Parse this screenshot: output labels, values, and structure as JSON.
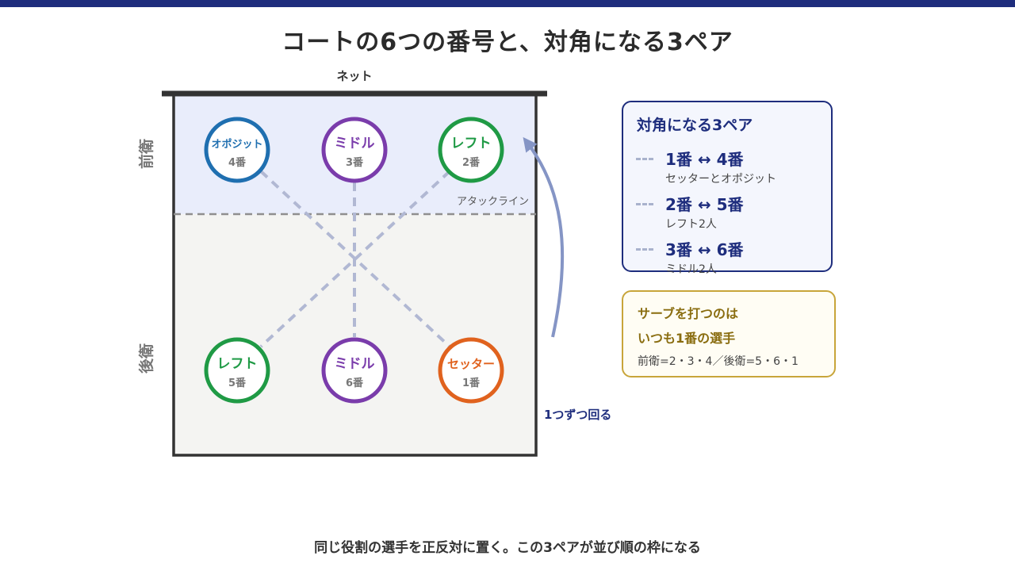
{
  "title": "コートの6つの番号と、対角になる3ペア",
  "court": {
    "net_label": "ネット",
    "front_label": "前衛",
    "back_label": "後衛",
    "attack_line_label": "アタックライン",
    "rotation_label": "1つずつ回る",
    "colors": {
      "front_zone": "#e9edfb",
      "back_zone": "#f4f4f2",
      "diagonal": "#b1b8d3",
      "rotation_arrow": "#8595c5"
    }
  },
  "players": [
    {
      "id": "p4",
      "role": "オポジット",
      "number": "4番",
      "color": "#1f6fb0"
    },
    {
      "id": "p3",
      "role": "ミドル",
      "number": "3番",
      "color": "#7a3cab"
    },
    {
      "id": "p2",
      "role": "レフト",
      "number": "2番",
      "color": "#1f9a45"
    },
    {
      "id": "p5",
      "role": "レフト",
      "number": "5番",
      "color": "#1f9a45"
    },
    {
      "id": "p6",
      "role": "ミドル",
      "number": "6番",
      "color": "#7a3cab"
    },
    {
      "id": "p1",
      "role": "セッター",
      "number": "1番",
      "color": "#e0621e"
    }
  ],
  "pairs_panel": {
    "title": "対角になる3ペア",
    "pairs": [
      {
        "label": "1番 ↔ 4番",
        "desc": "セッターとオポジット"
      },
      {
        "label": "2番 ↔ 5番",
        "desc": "レフト2人"
      },
      {
        "label": "3番 ↔ 6番",
        "desc": "ミドル2人"
      }
    ]
  },
  "serve_panel": {
    "line1": "サーブを打つのは",
    "line2": "いつも1番の選手",
    "note": "前衛=2・3・4／後衛=5・6・1"
  },
  "caption": "同じ役割の選手を正反対に置く。この3ペアが並び順の枠になる"
}
